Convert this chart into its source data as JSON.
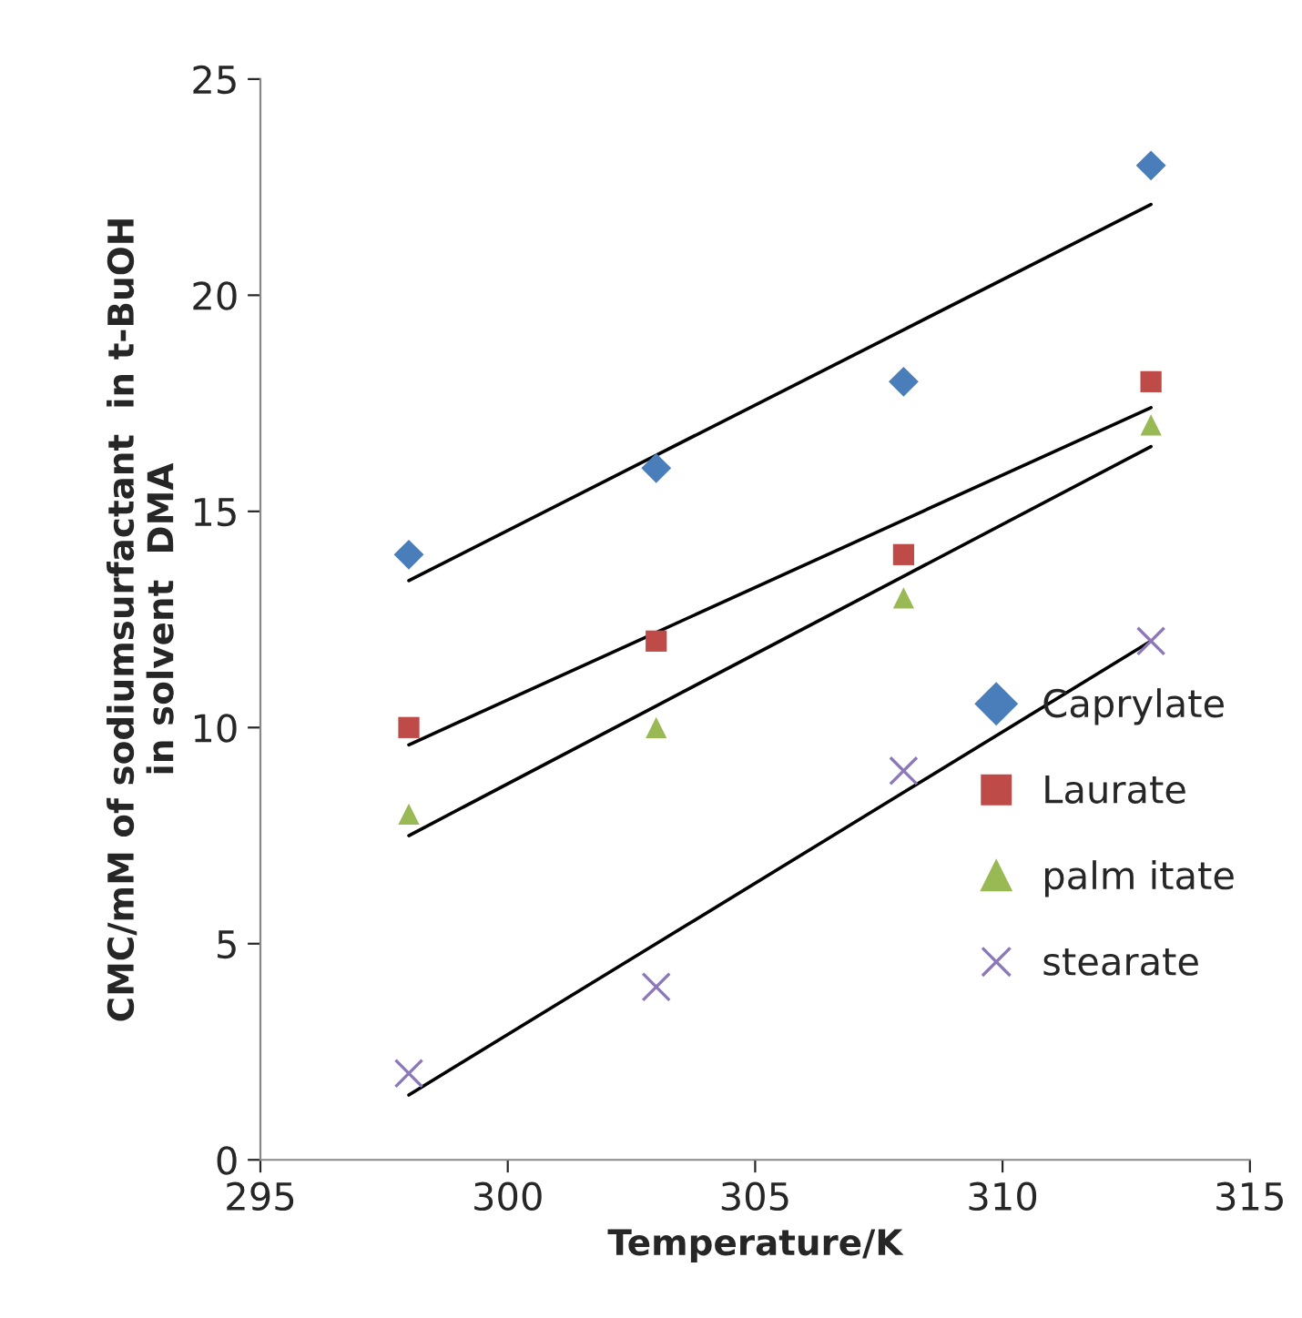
{
  "chart_data": {
    "type": "scatter",
    "xlabel": "Temperature/K",
    "ylabel": "CMC/mM of sodiumsurfactant  in t-BuOH\nin solvent  DMA",
    "x": [
      298,
      303,
      308,
      313
    ],
    "series": [
      {
        "name": "Caprylate",
        "color": "#4a7ebb",
        "marker": "diamond",
        "values": [
          14,
          16,
          18,
          23
        ]
      },
      {
        "name": "Laurate",
        "color": "#be4b48",
        "marker": "square",
        "values": [
          10,
          12,
          14,
          18
        ]
      },
      {
        "name": "palm itate",
        "color": "#98b954",
        "marker": "triangle",
        "values": [
          8,
          10,
          13,
          17
        ]
      },
      {
        "name": "stearate",
        "color": "#8b78b8",
        "marker": "cross",
        "values": [
          2,
          4,
          9,
          12
        ]
      },
      {
        "type": "line",
        "color": "#000000",
        "marker": "none",
        "values": [
          13.4,
          16.3,
          19.2,
          22.1
        ]
      },
      {
        "type": "line",
        "color": "#000000",
        "marker": "none",
        "values": [
          9.6,
          12.2,
          14.8,
          17.4
        ]
      },
      {
        "type": "line",
        "color": "#000000",
        "marker": "none",
        "values": [
          7.5,
          10.5,
          13.5,
          16.5
        ]
      },
      {
        "type": "line",
        "color": "#000000",
        "marker": "none",
        "values": [
          1.5,
          5.0,
          8.5,
          12.0
        ]
      }
    ],
    "xlim": [
      295,
      315
    ],
    "xticks": [
      295,
      300,
      305,
      310,
      315
    ],
    "ylim": [
      0,
      25
    ],
    "yticks": [
      0,
      5,
      10,
      15,
      20,
      25
    ],
    "grid": false,
    "legend": "right"
  }
}
